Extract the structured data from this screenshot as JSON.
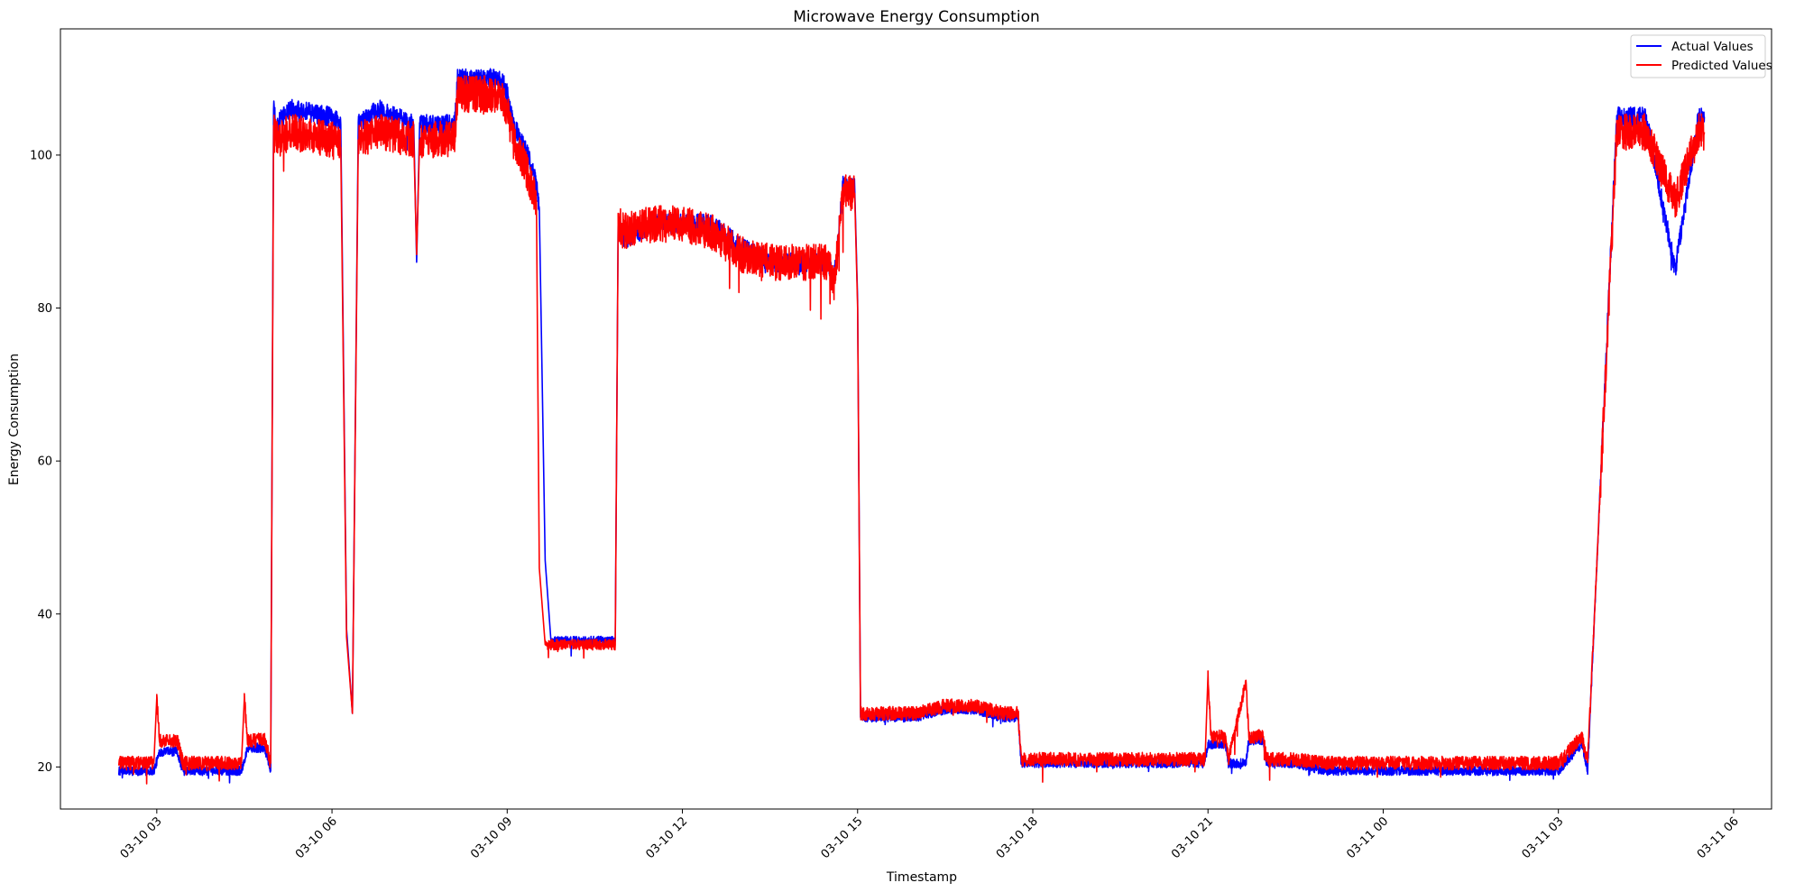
{
  "chart_data": {
    "type": "line",
    "title": "Microwave Energy Consumption",
    "xlabel": "Timestamp",
    "ylabel": "Energy Consumption",
    "x_range_hours": [
      1.35,
      30.65
    ],
    "ylim": [
      14.5,
      116.5
    ],
    "x_ticks": [
      {
        "hours": 3,
        "label": "03-10 03"
      },
      {
        "hours": 6,
        "label": "03-10 06"
      },
      {
        "hours": 9,
        "label": "03-10 09"
      },
      {
        "hours": 12,
        "label": "03-10 12"
      },
      {
        "hours": 15,
        "label": "03-10 15"
      },
      {
        "hours": 18,
        "label": "03-10 18"
      },
      {
        "hours": 21,
        "label": "03-10 21"
      },
      {
        "hours": 24,
        "label": "03-11 00"
      },
      {
        "hours": 27,
        "label": "03-11 03"
      },
      {
        "hours": 30,
        "label": "03-11 06"
      }
    ],
    "y_ticks": [
      20,
      40,
      60,
      80,
      100
    ],
    "grid": false,
    "legend": {
      "position": "top-right",
      "entries": [
        "Actual Values",
        "Predicted Values"
      ]
    },
    "colors": {
      "actual": "#0000ff",
      "predicted": "#ff0000"
    },
    "series": [
      {
        "name": "Actual Values",
        "x_hours": [
          2.35,
          2.95,
          3.05,
          3.35,
          3.45,
          4.45,
          4.55,
          4.85,
          4.95,
          5.0,
          5.05,
          5.3,
          6.0,
          6.15,
          6.25,
          6.35,
          6.45,
          6.8,
          7.4,
          7.45,
          7.5,
          8.1,
          8.15,
          8.6,
          8.9,
          9.0,
          9.1,
          9.3,
          9.4,
          9.5,
          9.55,
          9.65,
          9.75,
          10.2,
          10.85,
          10.9,
          11.0,
          11.5,
          12.0,
          12.5,
          13.0,
          13.5,
          14.0,
          14.5,
          14.6,
          14.75,
          14.95,
          15.0,
          15.05,
          15.5,
          16.0,
          16.5,
          17.0,
          17.5,
          17.75,
          17.8,
          18.0,
          18.5,
          19.0,
          20.0,
          20.95,
          21.0,
          21.3,
          21.35,
          21.65,
          21.7,
          21.95,
          22.0,
          22.5,
          23.0,
          24.0,
          25.0,
          26.0,
          26.9,
          27.0,
          27.4,
          27.5,
          28.0,
          28.5,
          29.0,
          29.4,
          29.5
        ],
        "y": [
          19.5,
          19.5,
          22,
          22,
          19.5,
          19.5,
          22.5,
          22.5,
          19.5,
          106,
          104,
          106,
          105,
          104,
          38,
          27,
          104,
          106,
          104,
          86,
          104,
          104,
          110,
          110,
          110,
          108,
          104,
          101,
          99,
          96,
          93,
          47,
          36.5,
          36.5,
          36.5,
          91,
          89,
          91,
          91,
          91,
          88,
          86,
          86,
          86,
          84,
          96,
          96,
          81,
          26.5,
          26.5,
          26.5,
          27.5,
          27.5,
          26.5,
          26.5,
          20.5,
          20.5,
          20.5,
          20.5,
          20.5,
          20.5,
          23,
          23,
          20.5,
          20.5,
          23.5,
          23.5,
          20.5,
          20.5,
          19.5,
          19.5,
          19.5,
          19.5,
          19.5,
          19.5,
          23,
          19.5,
          105,
          105,
          85,
          105,
          105
        ]
      },
      {
        "name": "Predicted Values",
        "x_hours": [
          2.35,
          2.95,
          3.0,
          3.05,
          3.35,
          3.45,
          4.45,
          4.5,
          4.55,
          4.85,
          4.95,
          5.0,
          5.05,
          5.3,
          6.0,
          6.15,
          6.25,
          6.35,
          6.45,
          6.8,
          7.4,
          7.45,
          7.5,
          8.1,
          8.15,
          8.6,
          8.9,
          9.0,
          9.1,
          9.3,
          9.4,
          9.5,
          9.55,
          9.65,
          9.75,
          10.2,
          10.85,
          10.9,
          11.0,
          11.5,
          12.0,
          12.5,
          13.0,
          13.5,
          14.0,
          14.5,
          14.6,
          14.75,
          14.95,
          15.0,
          15.05,
          15.5,
          16.0,
          16.5,
          17.0,
          17.5,
          17.75,
          17.8,
          18.0,
          18.5,
          19.0,
          20.0,
          20.95,
          21.0,
          21.05,
          21.3,
          21.35,
          21.65,
          21.7,
          21.95,
          22.0,
          22.5,
          23.0,
          24.0,
          25.0,
          26.0,
          26.9,
          27.0,
          27.4,
          27.5,
          28.0,
          28.5,
          29.0,
          29.4,
          29.5
        ],
        "y": [
          20.5,
          20.5,
          29,
          23.5,
          23.5,
          20.5,
          20.5,
          29,
          23.5,
          23.5,
          20.5,
          103,
          102,
          103,
          102,
          101,
          37,
          27,
          102,
          103,
          102,
          87,
          102,
          102,
          108,
          108,
          108,
          106,
          102,
          99,
          96,
          94,
          46,
          36,
          36,
          36,
          36,
          91,
          90,
          91,
          91,
          90,
          87,
          86,
          86,
          86,
          83,
          95,
          95,
          80,
          27,
          27,
          27,
          28,
          28,
          27,
          27,
          21,
          21,
          21,
          21,
          21,
          21,
          32,
          24,
          24,
          21,
          31,
          24,
          24,
          21,
          21,
          20.5,
          20.5,
          20.5,
          20.5,
          20.5,
          20.5,
          24,
          20.5,
          103,
          103,
          94,
          103,
          103
        ]
      }
    ]
  }
}
